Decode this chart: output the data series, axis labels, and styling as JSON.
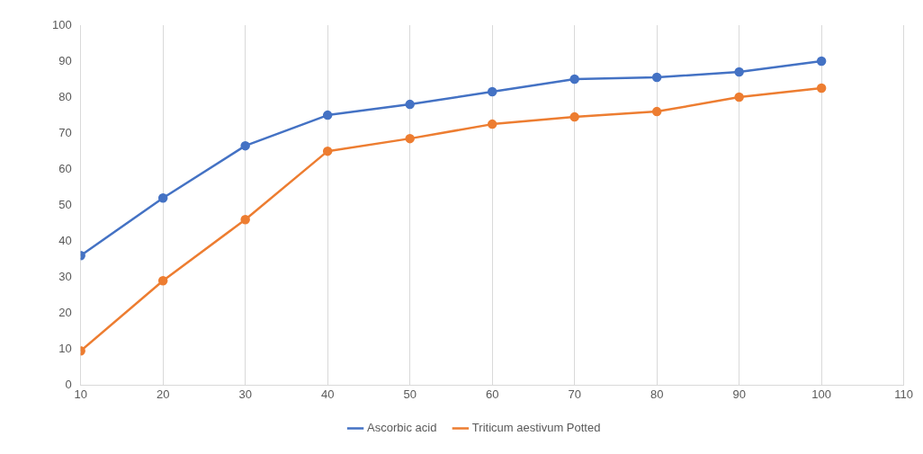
{
  "chart_data": {
    "type": "line",
    "x": [
      10,
      20,
      30,
      40,
      50,
      60,
      70,
      80,
      90,
      100
    ],
    "series": [
      {
        "name": "Ascorbic acid",
        "color": "#4472c4",
        "values": [
          36,
          52,
          66.5,
          75,
          78,
          81.5,
          85,
          85.5,
          87,
          90
        ]
      },
      {
        "name": "Triticum aestivum Potted",
        "color": "#ed7d31",
        "values": [
          9.5,
          29,
          46,
          65,
          68.5,
          72.5,
          74.5,
          76,
          80,
          82.5
        ]
      }
    ],
    "xlim": [
      10,
      110
    ],
    "xticks": [
      10,
      20,
      30,
      40,
      50,
      60,
      70,
      80,
      90,
      100,
      110
    ],
    "ylim": [
      0,
      100
    ],
    "yticks": [
      0,
      10,
      20,
      30,
      40,
      50,
      60,
      70,
      80,
      90,
      100
    ],
    "grid": "x",
    "legend": "bottom",
    "marker": "circle",
    "line_style": "solid"
  }
}
